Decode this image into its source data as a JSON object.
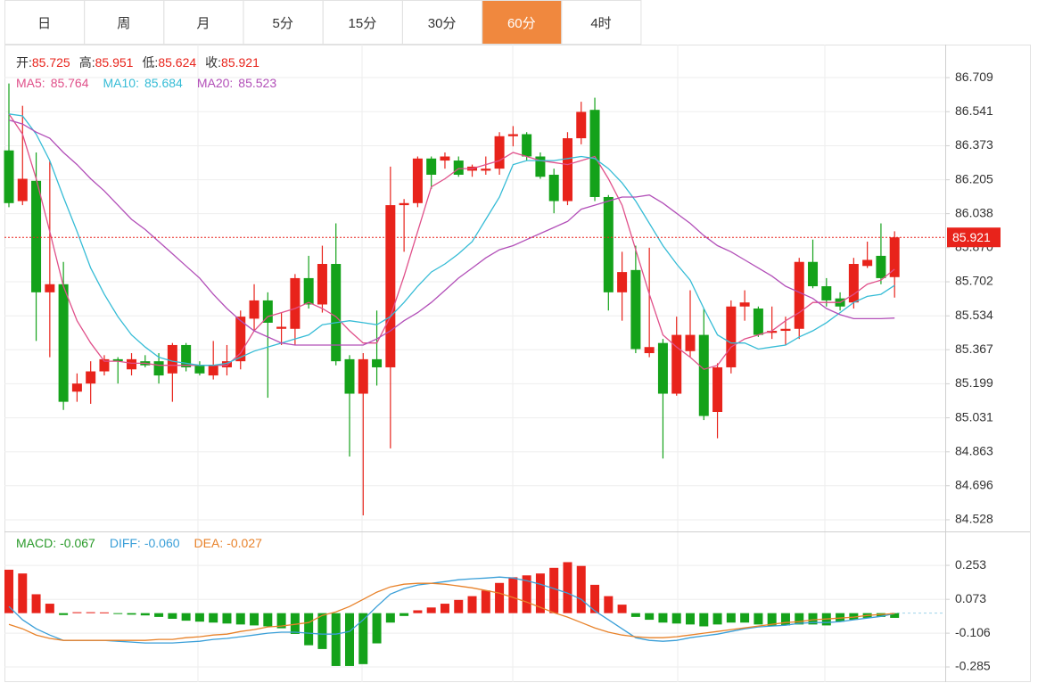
{
  "tabs": {
    "items": [
      "日",
      "周",
      "月",
      "5分",
      "15分",
      "30分",
      "60分",
      "4时"
    ],
    "active": 6,
    "active_color": "#f0883e"
  },
  "chart_data": [
    {
      "type": "candlestick",
      "ylim": [
        84.475,
        86.872
      ],
      "yticks": [
        84.528,
        84.696,
        84.863,
        85.031,
        85.199,
        85.367,
        85.534,
        85.702,
        {
          "value": 85.87,
          "label": "85.870"
        },
        86.038,
        86.205,
        86.373,
        86.541,
        86.709
      ],
      "up_color": "#e8231b",
      "down_color": "#14a21a",
      "ohlc_labels": [
        "开:",
        "高:",
        "低:",
        "收:"
      ],
      "open": [
        86.35,
        86.1,
        86.2,
        85.65,
        85.69,
        85.16,
        85.2,
        85.26,
        85.32,
        85.27,
        85.31,
        85.31,
        85.25,
        85.39,
        85.29,
        85.24,
        85.28,
        85.31,
        85.52,
        85.61,
        85.47,
        85.47,
        85.72,
        85.59,
        85.79,
        85.32,
        85.15,
        85.32,
        85.28,
        86.08,
        86.09,
        86.31,
        86.3,
        86.3,
        86.25,
        86.25,
        86.26,
        86.42,
        86.43,
        86.32,
        86.23,
        86.1,
        86.41,
        86.55,
        86.12,
        85.65,
        85.76,
        85.35,
        85.4,
        85.15,
        85.36,
        85.44,
        85.06,
        85.28,
        85.58,
        85.57,
        85.45,
        85.46,
        85.47,
        85.8,
        85.68,
        85.62,
        85.6,
        85.78,
        85.83,
        85.725
      ],
      "high": [
        86.68,
        86.57,
        86.34,
        86.3,
        85.8,
        85.25,
        85.31,
        85.34,
        85.33,
        85.35,
        85.34,
        85.35,
        85.4,
        85.4,
        85.31,
        85.41,
        85.39,
        85.56,
        85.69,
        85.65,
        85.55,
        85.74,
        85.83,
        85.88,
        85.99,
        85.34,
        85.35,
        85.56,
        86.27,
        86.11,
        86.32,
        86.32,
        86.34,
        86.32,
        86.28,
        86.32,
        86.44,
        86.47,
        86.44,
        86.34,
        86.26,
        86.44,
        86.59,
        86.61,
        86.13,
        85.85,
        85.88,
        85.87,
        85.42,
        85.53,
        85.66,
        85.57,
        85.3,
        85.61,
        85.66,
        85.58,
        85.58,
        85.53,
        85.82,
        85.91,
        85.72,
        85.65,
        85.82,
        85.9,
        85.99,
        85.951
      ],
      "low": [
        86.07,
        86.08,
        85.41,
        85.33,
        85.07,
        85.11,
        85.1,
        85.24,
        85.2,
        85.24,
        85.28,
        85.2,
        85.11,
        85.26,
        85.24,
        85.22,
        85.24,
        85.27,
        85.46,
        85.13,
        85.39,
        85.39,
        85.57,
        85.55,
        85.29,
        84.84,
        84.55,
        85.19,
        84.88,
        85.85,
        86.07,
        86.16,
        86.26,
        86.22,
        86.22,
        86.23,
        86.23,
        86.37,
        86.3,
        86.21,
        86.04,
        86.08,
        86.38,
        86.1,
        85.56,
        85.51,
        85.35,
        85.33,
        84.83,
        85.14,
        85.33,
        85.02,
        84.93,
        85.25,
        85.51,
        85.43,
        85.42,
        85.39,
        85.42,
        85.67,
        85.58,
        85.56,
        85.57,
        85.77,
        85.69,
        85.624
      ],
      "close": [
        86.09,
        86.21,
        85.65,
        85.69,
        85.11,
        85.2,
        85.26,
        85.32,
        85.31,
        85.32,
        85.29,
        85.24,
        85.39,
        85.28,
        85.25,
        85.29,
        85.31,
        85.53,
        85.61,
        85.5,
        85.48,
        85.72,
        85.59,
        85.79,
        85.31,
        85.15,
        85.32,
        85.28,
        86.08,
        86.09,
        86.31,
        86.23,
        86.32,
        86.23,
        86.27,
        86.26,
        86.42,
        86.43,
        86.32,
        86.22,
        86.1,
        86.41,
        86.54,
        86.12,
        85.65,
        85.75,
        85.37,
        85.38,
        85.15,
        85.44,
        85.44,
        85.04,
        85.28,
        85.58,
        85.6,
        85.44,
        85.46,
        85.47,
        85.8,
        85.68,
        85.61,
        85.58,
        85.79,
        85.81,
        85.72,
        85.921
      ],
      "series": [
        {
          "name": "MA5:",
          "color": "#e0508a",
          "values": [
            86.53,
            86.43,
            86.21,
            85.95,
            85.68,
            85.51,
            85.4,
            85.31,
            85.31,
            85.3,
            85.3,
            85.29,
            85.29,
            85.29,
            85.29,
            85.29,
            85.29,
            85.35,
            85.46,
            85.53,
            85.55,
            85.57,
            85.6,
            85.57,
            85.53,
            85.46,
            85.4,
            85.4,
            85.53,
            85.73,
            85.95,
            86.17,
            86.21,
            86.26,
            86.26,
            86.28,
            86.3,
            86.34,
            86.32,
            86.3,
            86.29,
            86.28,
            86.3,
            86.32,
            86.21,
            86.08,
            85.86,
            85.64,
            85.44,
            85.38,
            85.33,
            85.27,
            85.29,
            85.38,
            85.42,
            85.44,
            85.46,
            85.51,
            85.55,
            85.6,
            85.6,
            85.6,
            85.64,
            85.69,
            85.71,
            85.764
          ]
        },
        {
          "name": "MA10:",
          "color": "#36bcd6",
          "values": [
            86.53,
            86.52,
            86.43,
            86.3,
            86.12,
            85.95,
            85.77,
            85.64,
            85.53,
            85.44,
            85.38,
            85.33,
            85.31,
            85.3,
            85.29,
            85.29,
            85.3,
            85.33,
            85.36,
            85.38,
            85.4,
            85.42,
            85.44,
            85.49,
            85.5,
            85.51,
            85.5,
            85.49,
            85.53,
            85.6,
            85.68,
            85.75,
            85.79,
            85.84,
            85.9,
            86.01,
            86.12,
            86.28,
            86.3,
            86.3,
            86.3,
            86.31,
            86.32,
            86.31,
            86.26,
            86.19,
            86.1,
            85.99,
            85.88,
            85.79,
            85.71,
            85.57,
            85.44,
            85.4,
            85.4,
            85.37,
            85.38,
            85.39,
            85.43,
            85.46,
            85.5,
            85.55,
            85.6,
            85.63,
            85.64,
            85.684
          ]
        },
        {
          "name": "MA20:",
          "color": "#b24fb8",
          "values": [
            86.5,
            86.48,
            86.44,
            86.41,
            86.34,
            86.28,
            86.21,
            86.15,
            86.08,
            86.01,
            85.96,
            85.9,
            85.84,
            85.78,
            85.72,
            85.64,
            85.57,
            85.51,
            85.46,
            85.43,
            85.4,
            85.39,
            85.39,
            85.39,
            85.39,
            85.39,
            85.39,
            85.42,
            85.46,
            85.51,
            85.55,
            85.6,
            85.66,
            85.72,
            85.77,
            85.82,
            85.86,
            85.88,
            85.91,
            85.94,
            85.97,
            86.0,
            86.06,
            86.08,
            86.1,
            86.12,
            86.12,
            86.13,
            86.09,
            86.04,
            85.99,
            85.93,
            85.88,
            85.85,
            85.81,
            85.77,
            85.73,
            85.68,
            85.65,
            85.62,
            85.57,
            85.54,
            85.52,
            85.52,
            85.52,
            85.523
          ]
        }
      ]
    },
    {
      "type": "macd",
      "ylim": [
        -0.351,
        0.428
      ],
      "yticks": [
        -0.285,
        -0.106,
        0.073,
        0.253
      ],
      "up_color": "#e8231b",
      "down_color": "#14a21a",
      "histogram": [
        0.23,
        0.21,
        0.1,
        0.05,
        -0.01,
        0.005,
        0.005,
        0.004,
        -0.004,
        -0.008,
        -0.012,
        -0.02,
        -0.03,
        -0.04,
        -0.045,
        -0.05,
        -0.055,
        -0.06,
        -0.065,
        -0.07,
        -0.08,
        -0.11,
        -0.17,
        -0.19,
        -0.28,
        -0.28,
        -0.27,
        -0.16,
        -0.05,
        -0.015,
        0.015,
        0.03,
        0.05,
        0.07,
        0.09,
        0.12,
        0.16,
        0.19,
        0.2,
        0.21,
        0.24,
        0.27,
        0.25,
        0.15,
        0.09,
        0.045,
        -0.02,
        -0.035,
        -0.05,
        -0.055,
        -0.06,
        -0.07,
        -0.06,
        -0.05,
        -0.05,
        -0.06,
        -0.07,
        -0.065,
        -0.06,
        -0.06,
        -0.065,
        -0.045,
        -0.035,
        -0.025,
        -0.02,
        -0.025
      ],
      "series": [
        {
          "name": "DIFF:",
          "color": "#3a9fd8",
          "values": [
            0.035,
            -0.035,
            -0.083,
            -0.116,
            -0.144,
            -0.144,
            -0.144,
            -0.144,
            -0.149,
            -0.153,
            -0.158,
            -0.158,
            -0.158,
            -0.153,
            -0.149,
            -0.139,
            -0.134,
            -0.125,
            -0.116,
            -0.106,
            -0.101,
            -0.101,
            -0.106,
            -0.111,
            -0.111,
            -0.097,
            -0.035,
            0.035,
            0.101,
            0.13,
            0.149,
            0.158,
            0.167,
            0.177,
            0.182,
            0.186,
            0.191,
            0.186,
            0.172,
            0.153,
            0.13,
            0.106,
            0.073,
            0.012,
            -0.035,
            -0.083,
            -0.13,
            -0.144,
            -0.149,
            -0.144,
            -0.13,
            -0.12,
            -0.111,
            -0.097,
            -0.083,
            -0.073,
            -0.068,
            -0.064,
            -0.054,
            -0.05,
            -0.05,
            -0.045,
            -0.035,
            -0.026,
            -0.017,
            -0.002
          ]
        },
        {
          "name": "DEA:",
          "color": "#e8822a",
          "values": [
            -0.059,
            -0.083,
            -0.116,
            -0.134,
            -0.144,
            -0.144,
            -0.144,
            -0.144,
            -0.144,
            -0.144,
            -0.144,
            -0.139,
            -0.139,
            -0.13,
            -0.125,
            -0.116,
            -0.111,
            -0.097,
            -0.087,
            -0.073,
            -0.068,
            -0.059,
            -0.05,
            -0.012,
            0.007,
            0.035,
            0.073,
            0.111,
            0.139,
            0.153,
            0.158,
            0.158,
            0.153,
            0.144,
            0.134,
            0.12,
            0.106,
            0.083,
            0.059,
            0.031,
            0.002,
            -0.021,
            -0.05,
            -0.078,
            -0.101,
            -0.116,
            -0.125,
            -0.13,
            -0.13,
            -0.125,
            -0.116,
            -0.106,
            -0.097,
            -0.087,
            -0.078,
            -0.068,
            -0.059,
            -0.05,
            -0.045,
            -0.035,
            -0.031,
            -0.026,
            -0.021,
            -0.012,
            -0.007,
            -0.002
          ]
        }
      ],
      "legend": [
        {
          "name": "MACD:",
          "value": -0.067,
          "color": "#2a9a2a"
        },
        {
          "name": "DIFF:",
          "value": {
            "value": -0.06,
            "label": "-0.060"
          },
          "color": "#3a9fd8"
        },
        {
          "name": "DEA:",
          "value": -0.027,
          "color": "#e8822a"
        }
      ]
    }
  ]
}
